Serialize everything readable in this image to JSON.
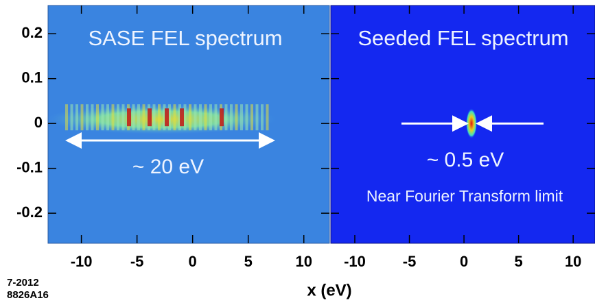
{
  "chart_data": [
    {
      "type": "image",
      "title": "SASE FEL spectrum",
      "annotations": [
        "~ 20 eV"
      ],
      "xlim": [
        -13,
        12.3
      ],
      "xticks": [
        -10,
        -5,
        0,
        5,
        10
      ],
      "ylim": [
        -0.267,
        0.263
      ],
      "yticks": [
        0.2,
        0.1,
        0,
        -0.1,
        -0.2
      ]
    },
    {
      "type": "image",
      "title": "Seeded FEL spectrum",
      "annotations": [
        "~ 0.5 eV",
        "Near Fourier Transform limit"
      ],
      "xlim": [
        -12.2,
        12
      ],
      "xticks": [
        -10,
        -5,
        0,
        5,
        10
      ],
      "ylim": [
        -0.267,
        0.263
      ],
      "yticks": [
        0.2,
        0.1,
        0,
        -0.1,
        -0.2
      ]
    }
  ],
  "figure": {
    "xlabel": "x  (eV)",
    "code": [
      "7-2012",
      "8826A16"
    ]
  }
}
